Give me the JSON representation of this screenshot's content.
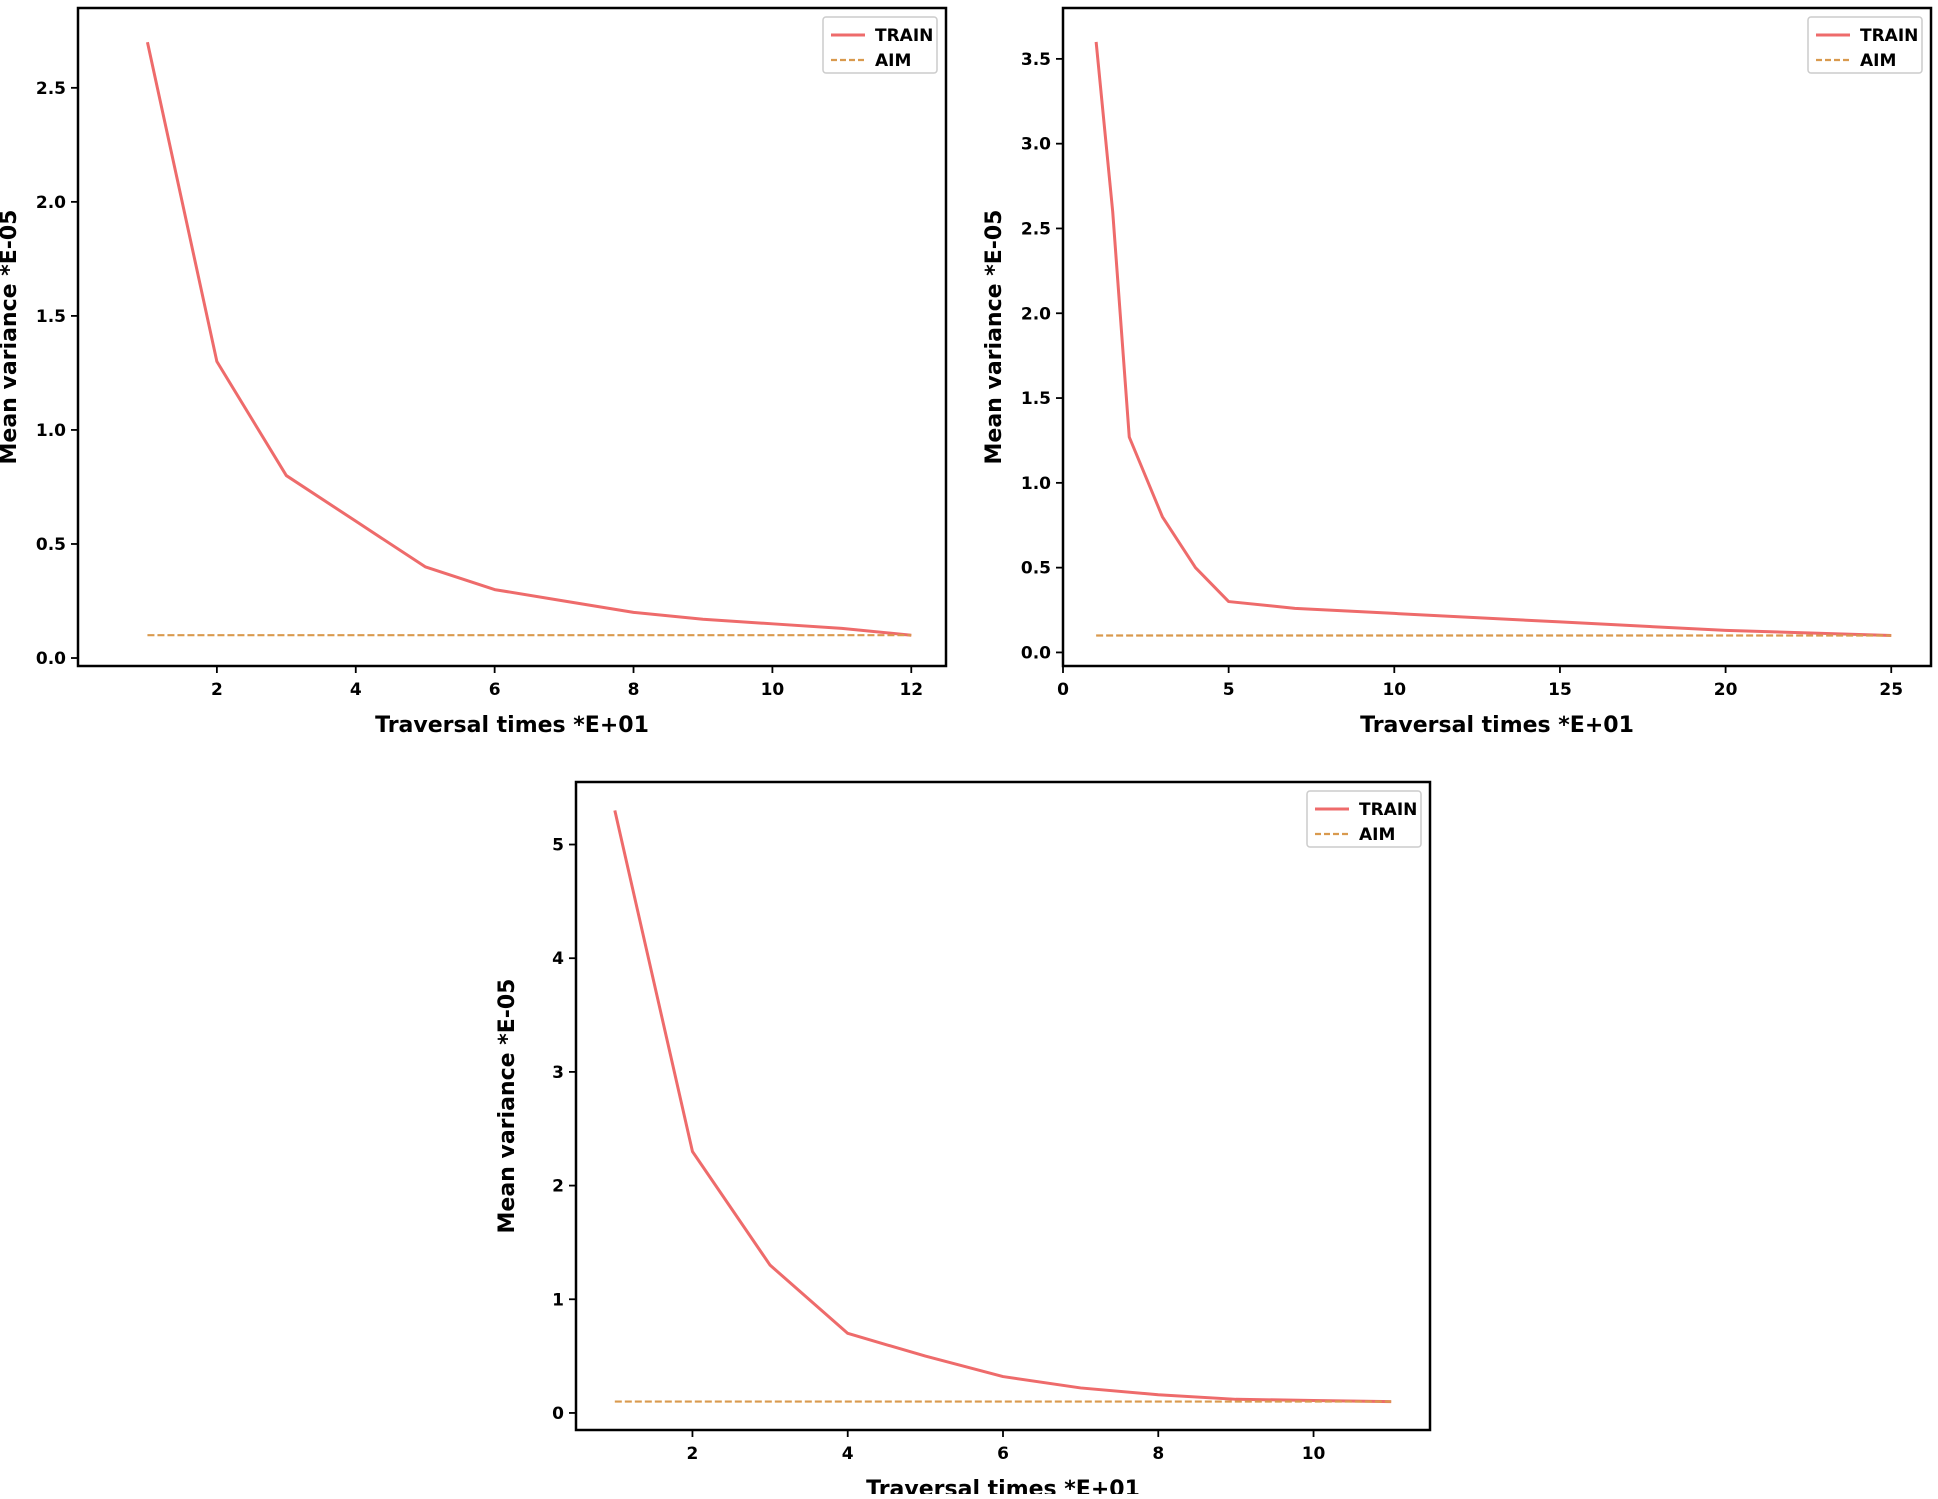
{
  "chart_data": [
    {
      "type": "line",
      "title": "",
      "xlabel": "Traversal times *E+01",
      "ylabel": "Mean variance *E-05",
      "xlim": [
        0.0,
        12.5
      ],
      "ylim": [
        -0.035,
        2.85
      ],
      "xticks": [
        2,
        4,
        6,
        8,
        10,
        12
      ],
      "xtick_labels": [
        "2",
        "4",
        "6",
        "8",
        "10",
        "12"
      ],
      "yticks": [
        0.0,
        0.5,
        1.0,
        1.5,
        2.0,
        2.5
      ],
      "ytick_labels": [
        "0.0",
        "0.5",
        "1.0",
        "1.5",
        "2.0",
        "2.5"
      ],
      "grid": false,
      "legend_position": "top-right",
      "series": [
        {
          "name": "TRAIN",
          "color": "#ee6b6b",
          "style": "solid",
          "x": [
            1,
            2,
            3,
            4,
            5,
            6,
            7,
            8,
            9,
            10,
            11,
            12
          ],
          "y": [
            2.7,
            1.3,
            0.8,
            0.6,
            0.4,
            0.3,
            0.25,
            0.2,
            0.17,
            0.15,
            0.13,
            0.1
          ]
        },
        {
          "name": "AIM",
          "color": "#d99a4e",
          "style": "dashed",
          "x": [
            1,
            12
          ],
          "y": [
            0.1,
            0.1
          ]
        }
      ]
    },
    {
      "type": "line",
      "title": "",
      "xlabel": "Traversal times *E+01",
      "ylabel": "Mean variance *E-05",
      "xlim": [
        0.0,
        26.2
      ],
      "ylim": [
        -0.08,
        3.8
      ],
      "xticks": [
        0,
        5,
        10,
        15,
        20,
        25
      ],
      "xtick_labels": [
        "0",
        "5",
        "10",
        "15",
        "20",
        "25"
      ],
      "yticks": [
        0.0,
        0.5,
        1.0,
        1.5,
        2.0,
        2.5,
        3.0,
        3.5
      ],
      "ytick_labels": [
        "0.0",
        "0.5",
        "1.0",
        "1.5",
        "2.0",
        "2.5",
        "3.0",
        "3.5"
      ],
      "grid": false,
      "legend_position": "top-right",
      "series": [
        {
          "name": "TRAIN",
          "color": "#ee6b6b",
          "style": "solid",
          "x": [
            1,
            1.5,
            2,
            3,
            4,
            5,
            7,
            10,
            15,
            20,
            25
          ],
          "y": [
            3.6,
            2.6,
            1.27,
            0.8,
            0.5,
            0.3,
            0.26,
            0.23,
            0.18,
            0.13,
            0.1
          ]
        },
        {
          "name": "AIM",
          "color": "#d99a4e",
          "style": "dashed",
          "x": [
            1,
            25
          ],
          "y": [
            0.1,
            0.1
          ]
        }
      ]
    },
    {
      "type": "line",
      "title": "",
      "xlabel": "Traversal times *E+01",
      "ylabel": "Mean variance *E-05",
      "xlim": [
        0.5,
        11.5
      ],
      "ylim": [
        -0.15,
        5.55
      ],
      "xticks": [
        2,
        4,
        6,
        8,
        10
      ],
      "xtick_labels": [
        "2",
        "4",
        "6",
        "8",
        "10"
      ],
      "yticks": [
        0,
        1,
        2,
        3,
        4,
        5
      ],
      "ytick_labels": [
        "0",
        "1",
        "2",
        "3",
        "4",
        "5"
      ],
      "grid": false,
      "legend_position": "top-right",
      "series": [
        {
          "name": "TRAIN",
          "color": "#ee6b6b",
          "style": "solid",
          "x": [
            1,
            2,
            3,
            4,
            5,
            6,
            7,
            8,
            9,
            10,
            11
          ],
          "y": [
            5.3,
            2.3,
            1.3,
            0.7,
            0.5,
            0.32,
            0.22,
            0.16,
            0.12,
            0.11,
            0.1
          ]
        },
        {
          "name": "AIM",
          "color": "#d99a4e",
          "style": "dashed",
          "x": [
            1,
            11
          ],
          "y": [
            0.1,
            0.1
          ]
        }
      ]
    }
  ]
}
